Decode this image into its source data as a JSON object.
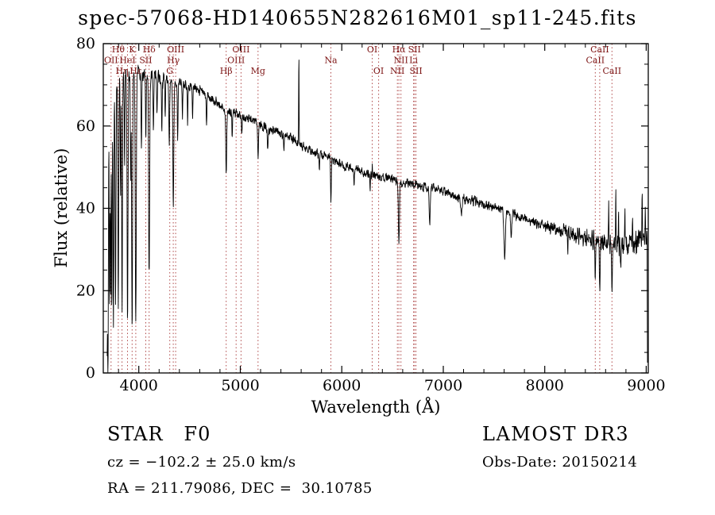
{
  "title": "spec-57068-HD140655N282616M01_sp11-245.fits",
  "footer": {
    "class_label": "STAR   F0",
    "survey": "LAMOST DR3",
    "cz": "cz = −102.2 ± 25.0 km/s",
    "obs_date": "Obs-Date: 20150214",
    "radec": "RA = 211.79086, DEC =  30.10785"
  },
  "chart_data": {
    "type": "line",
    "title": "spec-57068-HD140655N282616M01_sp11-245.fits",
    "xlabel": "Wavelength (Å)",
    "ylabel": "Flux (relative)",
    "xlim": [
      3650,
      9020
    ],
    "ylim": [
      0,
      80
    ],
    "xticks": [
      4000,
      5000,
      6000,
      7000,
      8000,
      9000
    ],
    "yticks": [
      0,
      20,
      40,
      60,
      80
    ],
    "xtick_minor_step": 200,
    "ytick_minor_step": 5,
    "grid": false,
    "legend": "none",
    "line_color": "#000000",
    "axis_color": "#000000",
    "marker_line_color": "#b04a4a",
    "marker_label_color": "#7d1515",
    "markers": [
      {
        "label": "Hθ",
        "wavelength": 3798,
        "row": 0
      },
      {
        "label": "K",
        "wavelength": 3934,
        "row": 0
      },
      {
        "label": "Hδ",
        "wavelength": 4102,
        "row": 0
      },
      {
        "label": "OIII",
        "wavelength": 4363,
        "row": 0
      },
      {
        "label": "OIII",
        "wavelength": 5007,
        "row": 0
      },
      {
        "label": "OI",
        "wavelength": 6300,
        "row": 0
      },
      {
        "label": "Hα",
        "wavelength": 6563,
        "row": 0
      },
      {
        "label": "SII",
        "wavelength": 6717,
        "row": 0
      },
      {
        "label": "CaII",
        "wavelength": 8542,
        "row": 0
      },
      {
        "label": "OII",
        "wavelength": 3727,
        "row": 1
      },
      {
        "label": "HeI",
        "wavelength": 3889,
        "row": 1
      },
      {
        "label": "SII",
        "wavelength": 4069,
        "row": 1
      },
      {
        "label": "Hγ",
        "wavelength": 4340,
        "row": 1
      },
      {
        "label": "OIII",
        "wavelength": 4959,
        "row": 1
      },
      {
        "label": "Na",
        "wavelength": 5893,
        "row": 1
      },
      {
        "label": "NII",
        "wavelength": 6583,
        "row": 1
      },
      {
        "label": "Li",
        "wavelength": 6708,
        "row": 1
      },
      {
        "label": "CaII",
        "wavelength": 8498,
        "row": 1
      },
      {
        "label": "Hη",
        "wavelength": 3835,
        "row": 2
      },
      {
        "label": "Hε",
        "wavelength": 3970,
        "row": 2
      },
      {
        "label": "G",
        "wavelength": 4305,
        "row": 2
      },
      {
        "label": "Hβ",
        "wavelength": 4861,
        "row": 2
      },
      {
        "label": "Mg",
        "wavelength": 5175,
        "row": 2
      },
      {
        "label": "OI",
        "wavelength": 6363,
        "row": 2
      },
      {
        "label": "NII",
        "wavelength": 6548,
        "row": 2
      },
      {
        "label": "SII",
        "wavelength": 6731,
        "row": 2
      },
      {
        "label": "CaII",
        "wavelength": 8662,
        "row": 2
      }
    ],
    "continuum": [
      [
        3686,
        0
      ],
      [
        3692,
        18
      ],
      [
        3700,
        52
      ],
      [
        3708,
        62
      ],
      [
        3718,
        66
      ],
      [
        3735,
        68
      ],
      [
        3760,
        70
      ],
      [
        3800,
        71
      ],
      [
        3850,
        72
      ],
      [
        3900,
        72.5
      ],
      [
        3960,
        73
      ],
      [
        4020,
        73
      ],
      [
        4100,
        72.5
      ],
      [
        4200,
        71.5
      ],
      [
        4300,
        71
      ],
      [
        4400,
        70.5
      ],
      [
        4500,
        69.5
      ],
      [
        4600,
        68.5
      ],
      [
        4700,
        67
      ],
      [
        4800,
        65
      ],
      [
        4900,
        63.5
      ],
      [
        5000,
        62.5
      ],
      [
        5100,
        61.5
      ],
      [
        5200,
        60
      ],
      [
        5300,
        59
      ],
      [
        5400,
        58
      ],
      [
        5500,
        57
      ],
      [
        5600,
        55.5
      ],
      [
        5700,
        54
      ],
      [
        5800,
        53
      ],
      [
        5900,
        52
      ],
      [
        6000,
        50.5
      ],
      [
        6100,
        49.5
      ],
      [
        6200,
        49
      ],
      [
        6300,
        48
      ],
      [
        6400,
        47.5
      ],
      [
        6500,
        47
      ],
      [
        6600,
        46.2
      ],
      [
        6700,
        45.8
      ],
      [
        6800,
        45.2
      ],
      [
        6900,
        44.8
      ],
      [
        7000,
        44
      ],
      [
        7100,
        43.2
      ],
      [
        7200,
        42.3
      ],
      [
        7300,
        41.8
      ],
      [
        7400,
        41
      ],
      [
        7500,
        40
      ],
      [
        7600,
        39.5
      ],
      [
        7700,
        38.5
      ],
      [
        7800,
        37.5
      ],
      [
        7900,
        36.5
      ],
      [
        8000,
        35.8
      ],
      [
        8100,
        35
      ],
      [
        8200,
        34.2
      ],
      [
        8300,
        33.5
      ],
      [
        8400,
        33
      ],
      [
        8500,
        32.2
      ],
      [
        8600,
        31.5
      ],
      [
        8700,
        31
      ],
      [
        8800,
        31
      ],
      [
        8900,
        31.5
      ],
      [
        9000,
        32.5
      ],
      [
        9020,
        33
      ]
    ],
    "absorption_lines": [
      [
        3697,
        42,
        3
      ],
      [
        3712,
        48,
        3
      ],
      [
        3722,
        50,
        3
      ],
      [
        3734,
        55,
        3.5
      ],
      [
        3750,
        58,
        4
      ],
      [
        3771,
        54,
        4
      ],
      [
        3798,
        56,
        4
      ],
      [
        3820,
        28,
        3
      ],
      [
        3835,
        58,
        4
      ],
      [
        3860,
        22,
        3
      ],
      [
        3889,
        60,
        4.5
      ],
      [
        3920,
        26,
        3
      ],
      [
        3934,
        62,
        4.5
      ],
      [
        3970,
        62,
        5
      ],
      [
        4026,
        18,
        3.5
      ],
      [
        4069,
        16,
        3.5
      ],
      [
        4102,
        50,
        5
      ],
      [
        4144,
        13,
        3.5
      ],
      [
        4179,
        10,
        3
      ],
      [
        4227,
        13,
        3
      ],
      [
        4260,
        9,
        3
      ],
      [
        4300,
        16,
        4
      ],
      [
        4340,
        30,
        5
      ],
      [
        4383,
        14,
        3.5
      ],
      [
        4430,
        8,
        3
      ],
      [
        4481,
        10,
        3
      ],
      [
        4530,
        7,
        3
      ],
      [
        4668,
        7,
        3
      ],
      [
        4861,
        15,
        5
      ],
      [
        4920,
        6,
        3
      ],
      [
        5015,
        5,
        3
      ],
      [
        5175,
        8,
        4
      ],
      [
        5270,
        5,
        3
      ],
      [
        5430,
        4,
        3
      ],
      [
        5780,
        3.5,
        3
      ],
      [
        5893,
        10,
        3.5
      ],
      [
        6122,
        3.5,
        3
      ],
      [
        6280,
        3,
        3
      ],
      [
        6563,
        16,
        5
      ],
      [
        6867,
        9,
        5
      ],
      [
        7180,
        4,
        7
      ],
      [
        7605,
        12,
        7
      ],
      [
        7670,
        6,
        5
      ],
      [
        8226,
        4,
        3.5
      ],
      [
        8498,
        9,
        3.5
      ],
      [
        8542,
        13,
        3.5
      ],
      [
        8662,
        11,
        3.5
      ],
      [
        8750,
        5,
        3
      ]
    ],
    "emission_lines": [
      [
        5577,
        22,
        2.2
      ],
      [
        6301,
        3,
        2
      ],
      [
        8630,
        9,
        2
      ],
      [
        8700,
        13,
        2.2
      ],
      [
        8727,
        9,
        2
      ],
      [
        8790,
        7,
        2
      ],
      [
        8865,
        9,
        2
      ],
      [
        8960,
        14,
        2.2
      ],
      [
        8990,
        8,
        2
      ]
    ],
    "noise": {
      "base_amplitude": 1.0,
      "blue_amplitude": 1.6,
      "red_amplitude_at_9000": 2.5
    },
    "edge_drop": {
      "wavelength": 9012,
      "flux": 2.5
    }
  }
}
